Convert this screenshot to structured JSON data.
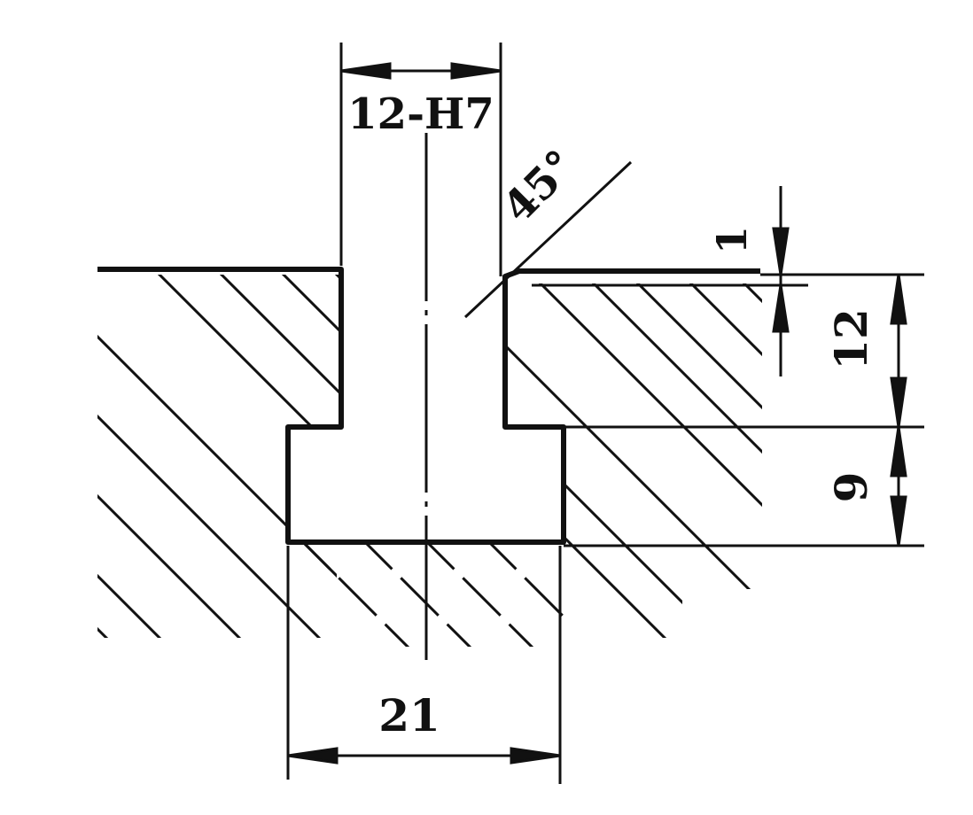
{
  "diagram": {
    "title": "",
    "dimensions": {
      "slot_width": "12-H7",
      "chamfer_angle": "45°",
      "chamfer_size": "1",
      "slot_depth": "12",
      "t_head_height": "9",
      "t_head_width": "21"
    },
    "colors": {
      "line": "#111111",
      "background": "#ffffff"
    }
  }
}
